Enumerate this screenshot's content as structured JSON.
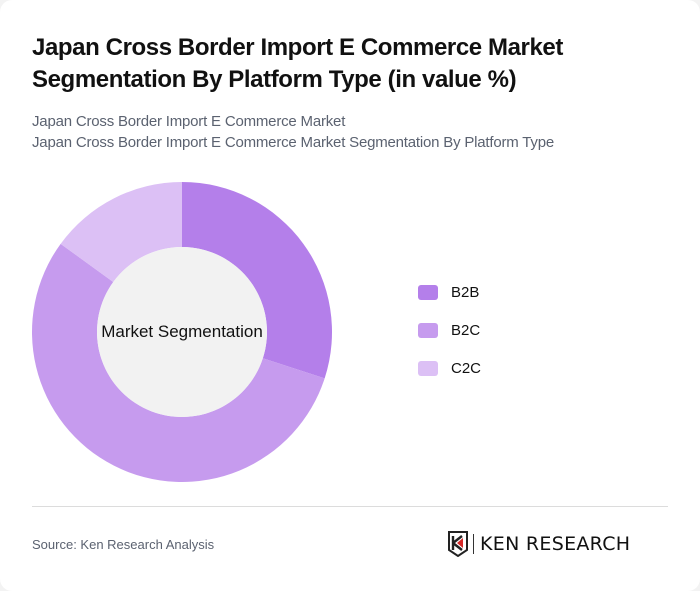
{
  "header": {
    "title": "Japan Cross Border Import E Commerce Market Segmentation By Platform Type (in value %)",
    "subtitle_line1": "Japan Cross Border Import E Commerce Market",
    "subtitle_line2": "Japan Cross Border Import E Commerce Market Segmentation By Platform Type"
  },
  "chart": {
    "center_label": "Market Segmentation",
    "legend": [
      {
        "label": "B2B",
        "color": "#b47fea"
      },
      {
        "label": "B2C",
        "color": "#c69bee"
      },
      {
        "label": "C2C",
        "color": "#dcc0f5"
      }
    ]
  },
  "footer": {
    "source": "Source: Ken Research Analysis",
    "logo_text": "KEN RESEARCH"
  },
  "chart_data": {
    "type": "pie",
    "subtype": "donut",
    "title": "Japan Cross Border Import E Commerce Market Segmentation By Platform Type (in value %)",
    "center_label": "Market Segmentation",
    "categories": [
      "B2B",
      "B2C",
      "C2C"
    ],
    "values": [
      30,
      55,
      15
    ],
    "colors": [
      "#b47fea",
      "#c69bee",
      "#dcc0f5"
    ],
    "legend_position": "right",
    "start_angle": "top, clockwise"
  }
}
